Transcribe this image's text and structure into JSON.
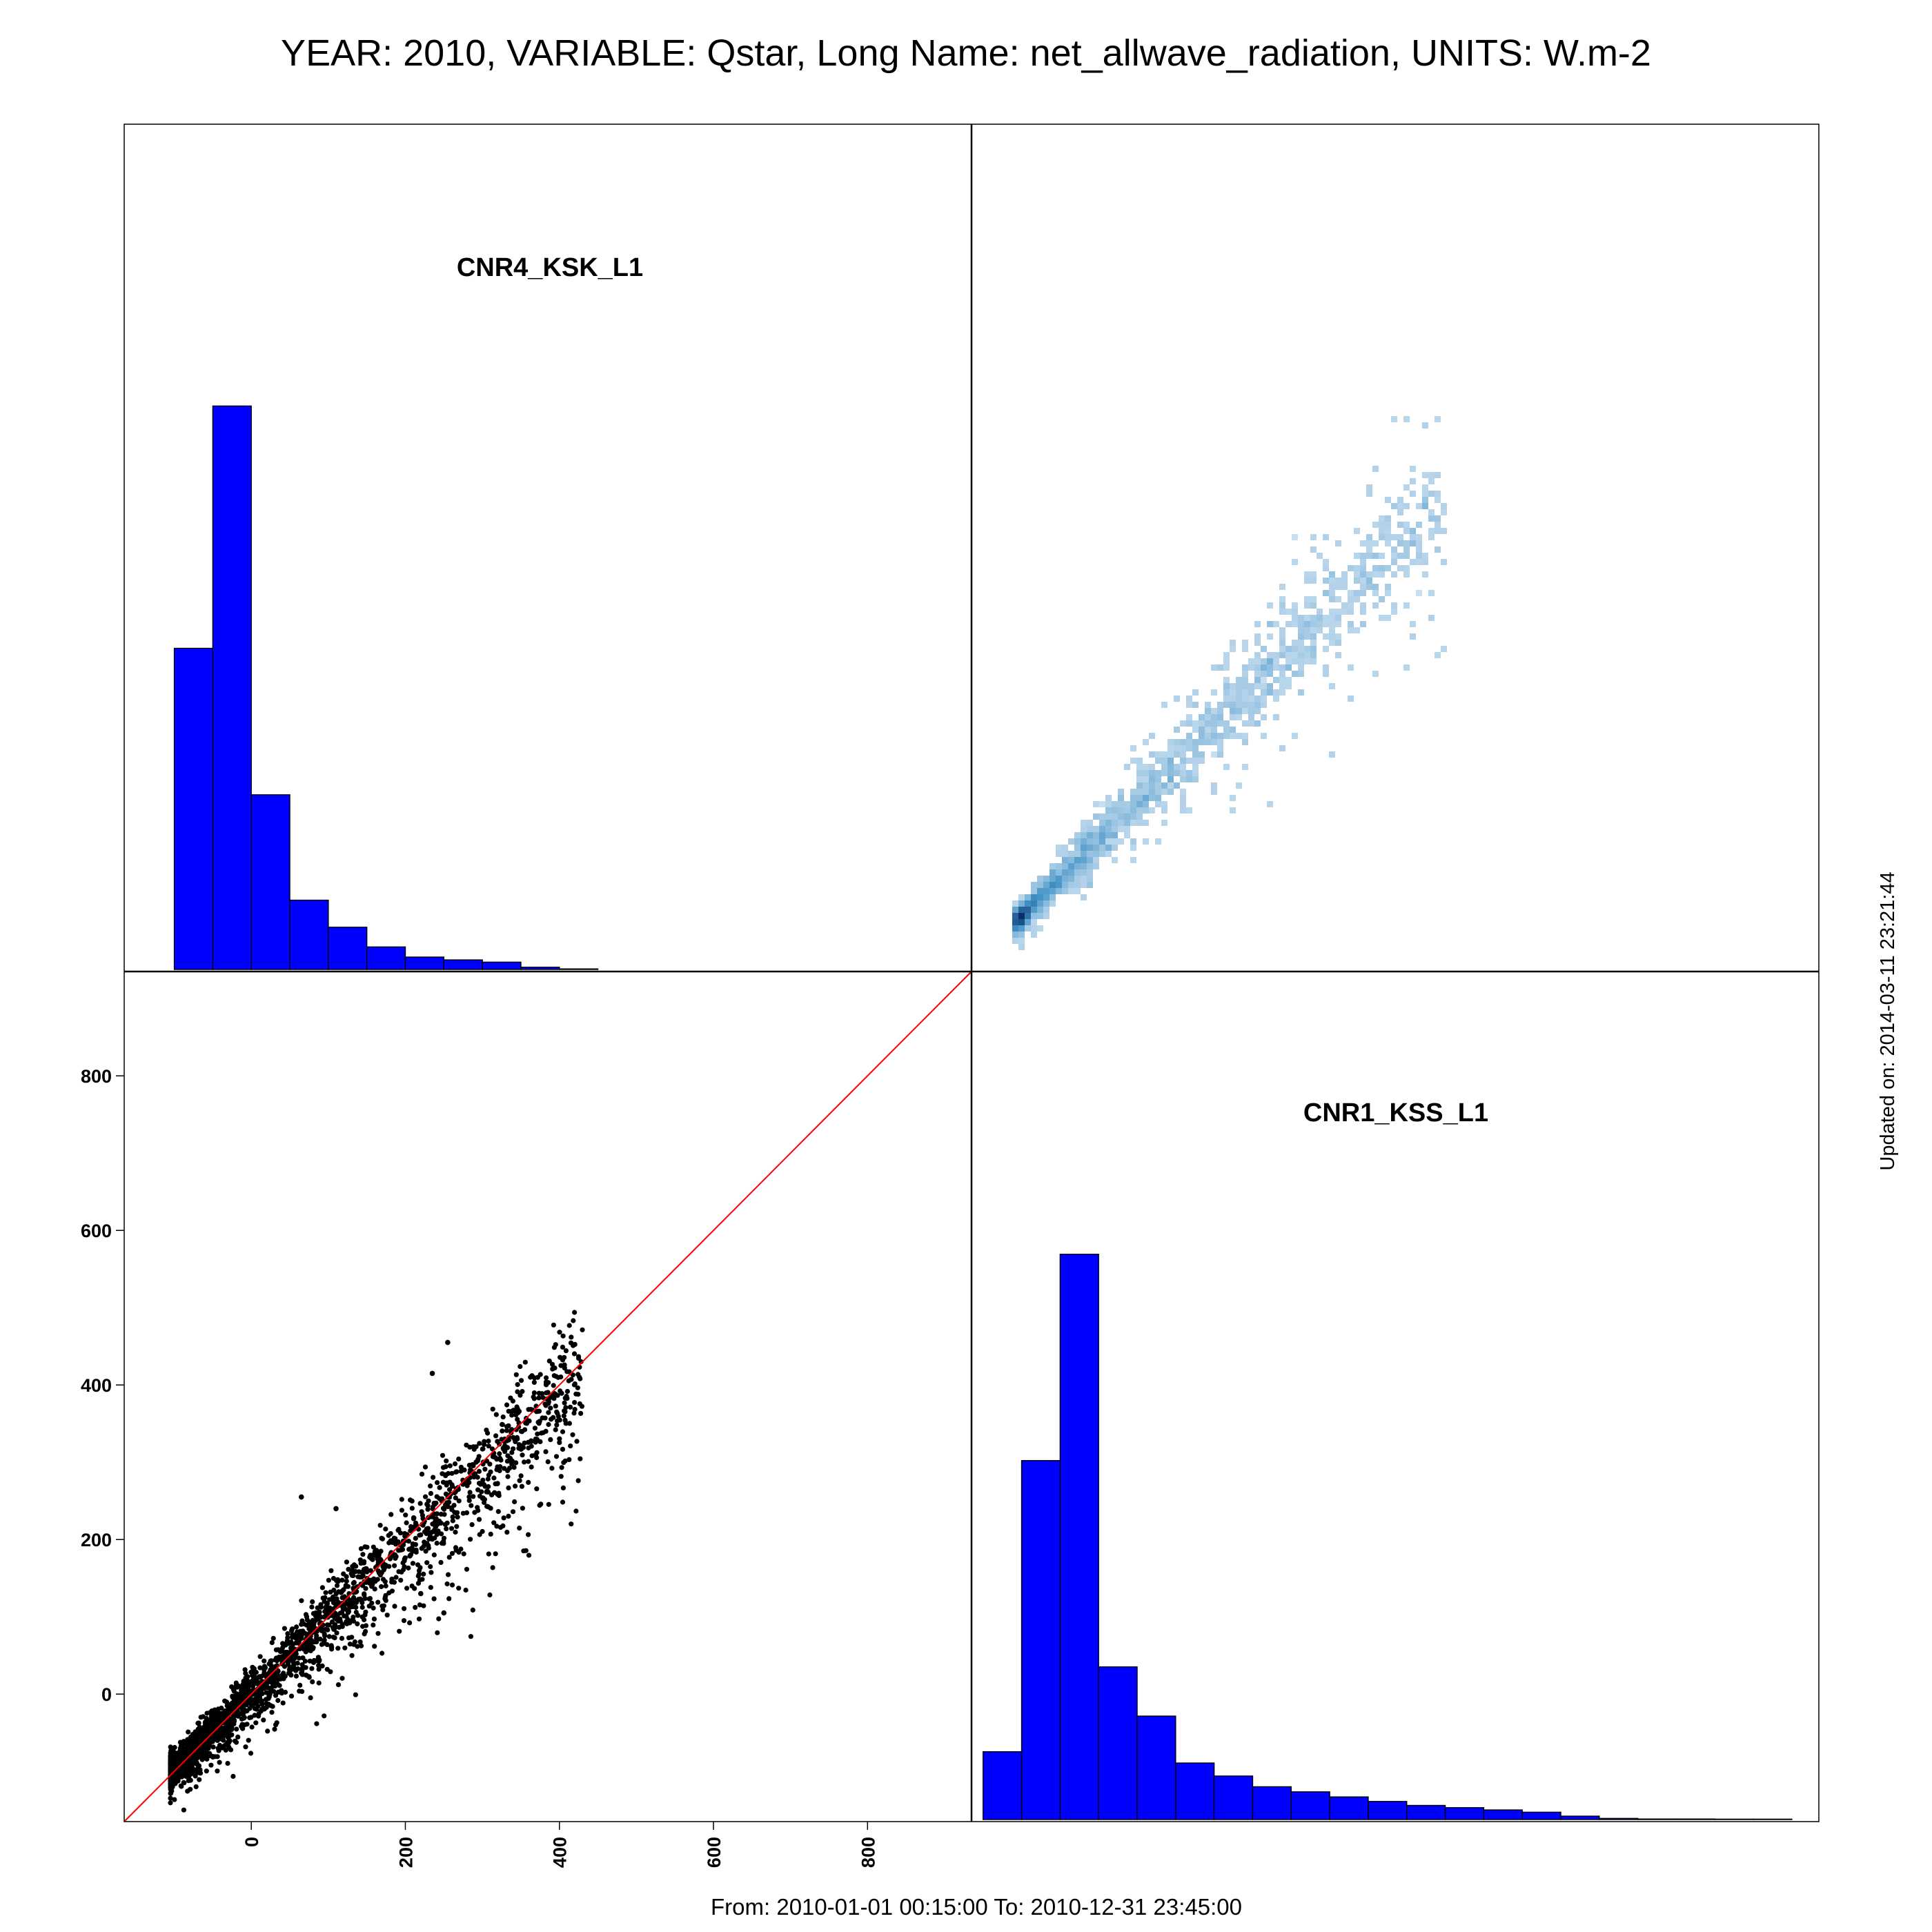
{
  "title": "YEAR: 2010, VARIABLE: Qstar, Long Name: net_allwave_radiation, UNITS: W.m-2",
  "footer": "From: 2010-01-01 00:15:00 To: 2010-12-31 23:45:00",
  "updated": "Updated on: 2014-03-11 23:21:44",
  "colors": {
    "hist_fill": "#0000ff",
    "hist_edge": "#000000",
    "scatter_point": "#000000",
    "one_to_one_line": "#ff0000",
    "density_low": "#deebf7",
    "density_mid": "#4292c6",
    "density_high": "#08306b",
    "frame": "#000000"
  },
  "chart_data": [
    {
      "type": "bar",
      "panel": "top-left",
      "title": "CNR4_KSK_L1",
      "bin_edges": [
        -100,
        -50,
        0,
        50,
        100,
        150,
        200,
        250,
        300,
        350,
        400,
        450
      ],
      "values": [
        0.57,
        1.0,
        0.31,
        0.123,
        0.075,
        0.04,
        0.022,
        0.017,
        0.013,
        0.004,
        0.001
      ],
      "value_scale": "relative frequency (no y axis shown)",
      "xlim": [
        -165,
        935
      ]
    },
    {
      "type": "heatmap",
      "panel": "top-right",
      "title": "",
      "description_values": "hexbin density of CNR1_KSS_L1 vs CNR4_KSK_L1",
      "xlim": [
        -165,
        935
      ],
      "ylim": [
        -165,
        935
      ],
      "density_ridge": [
        [
          -105,
          -110
        ],
        [
          -50,
          -55
        ],
        [
          0,
          -5
        ],
        [
          50,
          55
        ],
        [
          100,
          110
        ],
        [
          150,
          165
        ],
        [
          200,
          220
        ]
      ],
      "spread_upper": [
        [
          -100,
          -85
        ],
        [
          0,
          30
        ],
        [
          100,
          175
        ],
        [
          200,
          290
        ],
        [
          300,
          380
        ],
        [
          400,
          450
        ]
      ],
      "spread_lower": [
        [
          -90,
          -110
        ],
        [
          0,
          -35
        ],
        [
          100,
          80
        ],
        [
          200,
          170
        ],
        [
          300,
          290
        ],
        [
          400,
          390
        ]
      ],
      "outliers": [
        [
          255,
          400
        ],
        [
          240,
          270
        ]
      ]
    },
    {
      "type": "scatter",
      "panel": "bottom-left",
      "title": "",
      "xlabel": "",
      "ylabel": "",
      "xlim": [
        -165,
        935
      ],
      "ylim": [
        -165,
        935
      ],
      "x_ticks": [
        "0",
        "200",
        "400",
        "600",
        "800"
      ],
      "y_ticks": [
        "0",
        "200",
        "400",
        "600",
        "800"
      ],
      "x_tick_values": [
        0,
        200,
        400,
        600,
        800
      ],
      "y_tick_values": [
        0,
        200,
        400,
        600,
        800
      ],
      "reference_line": "y = x",
      "trend": {
        "slope": 0.98,
        "intercept": 5
      },
      "point_range_x": [
        -105,
        430
      ],
      "outliers": [
        [
          255,
          455
        ],
        [
          235,
          415
        ],
        [
          65,
          255
        ],
        [
          110,
          240
        ],
        [
          220,
          130
        ],
        [
          250,
          105
        ]
      ]
    },
    {
      "type": "bar",
      "panel": "bottom-right",
      "title": "CNR1_KSS_L1",
      "bin_edges": [
        -150,
        -100,
        -50,
        0,
        50,
        100,
        150,
        200,
        250,
        300,
        350,
        400,
        450,
        500,
        550,
        600,
        650,
        700,
        750,
        800,
        850,
        900
      ],
      "values": [
        0.12,
        0.635,
        1.0,
        0.27,
        0.183,
        0.1,
        0.077,
        0.058,
        0.049,
        0.04,
        0.032,
        0.025,
        0.021,
        0.017,
        0.013,
        0.006,
        0.002,
        0.001,
        0.001,
        0.0005,
        0.0005
      ],
      "value_scale": "relative frequency (no y axis shown)",
      "xlim": [
        -165,
        935
      ]
    }
  ]
}
